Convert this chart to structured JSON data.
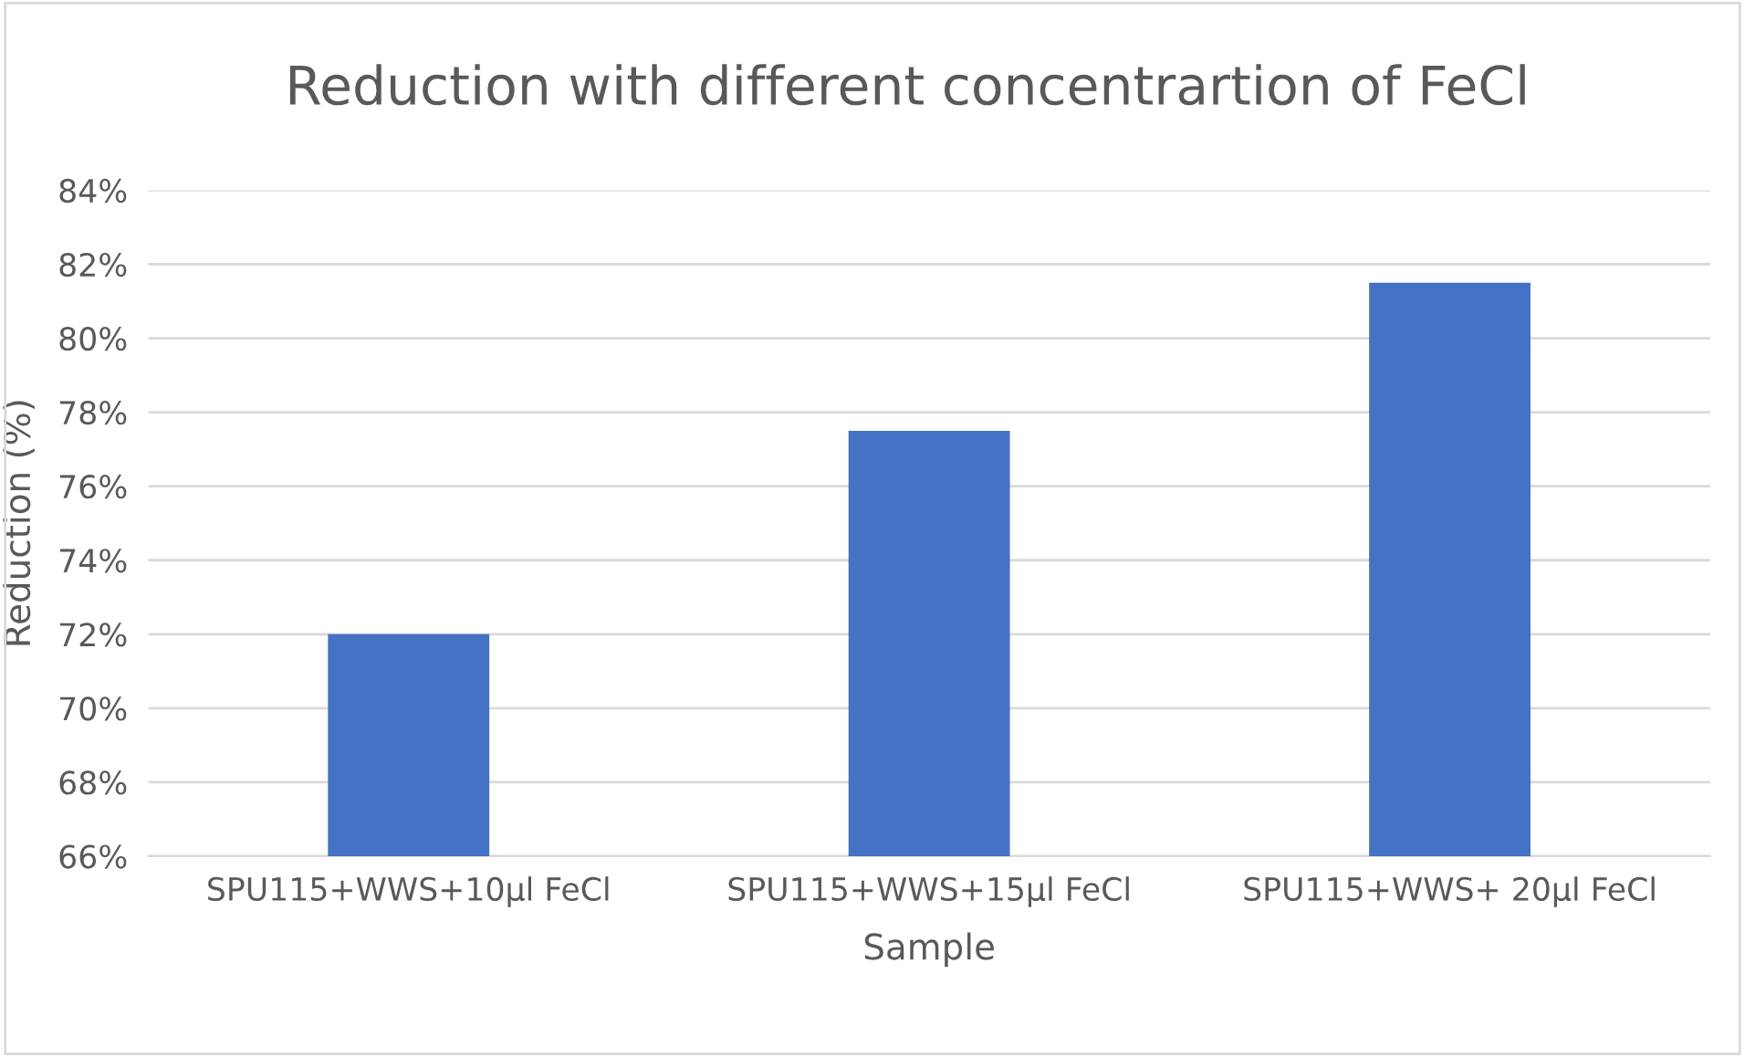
{
  "chart_data": {
    "type": "bar",
    "title": "Reduction with different concentrartion of FeCl",
    "xlabel": "Sample",
    "ylabel": "Reduction (%)",
    "categories": [
      "SPU115+WWS+10µl FeCl",
      "SPU115+WWS+15µl FeCl",
      "SPU115+WWS+ 20µl FeCl"
    ],
    "values": [
      72,
      77.5,
      81.5
    ],
    "color": "#4472c4",
    "ylim": [
      66,
      84
    ],
    "yticks": [
      {
        "value": 66,
        "label": "66%"
      },
      {
        "value": 68,
        "label": "68%"
      },
      {
        "value": 70,
        "label": "70%"
      },
      {
        "value": 72,
        "label": "72%"
      },
      {
        "value": 74,
        "label": "74%"
      },
      {
        "value": 76,
        "label": "76%"
      },
      {
        "value": 78,
        "label": "78%"
      },
      {
        "value": 80,
        "label": "80%"
      },
      {
        "value": 82,
        "label": "82%"
      },
      {
        "value": 84,
        "label": "84%"
      }
    ],
    "grid": "y"
  }
}
